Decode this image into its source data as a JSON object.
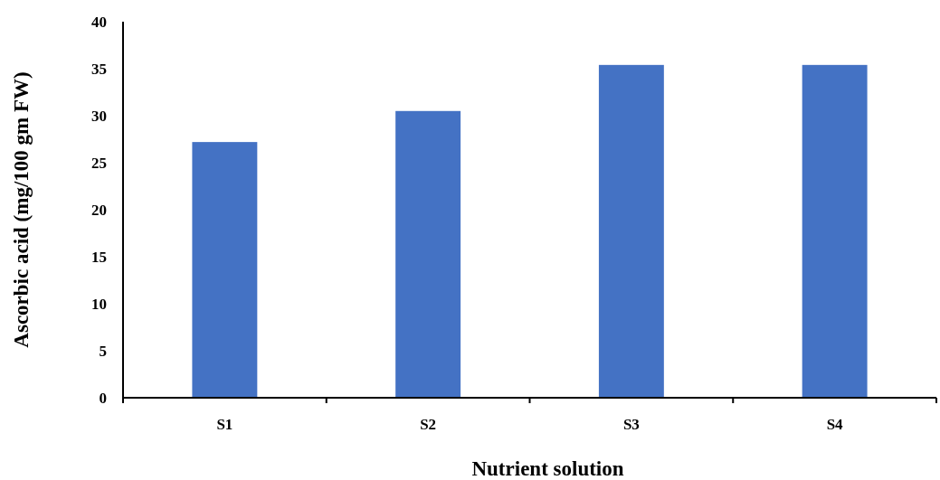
{
  "chart_data": {
    "type": "bar",
    "xlabel": "Nutrient solution",
    "ylabel": "Ascorbic acid (mg/100 gm FW)",
    "categories": [
      "S1",
      "S2",
      "S3",
      "S4"
    ],
    "values": [
      27.2,
      30.5,
      35.4,
      35.4
    ],
    "color": "#4472c4",
    "ylim": [
      0,
      40
    ],
    "yticks": [
      0,
      5,
      10,
      15,
      20,
      25,
      30,
      35,
      40
    ]
  }
}
